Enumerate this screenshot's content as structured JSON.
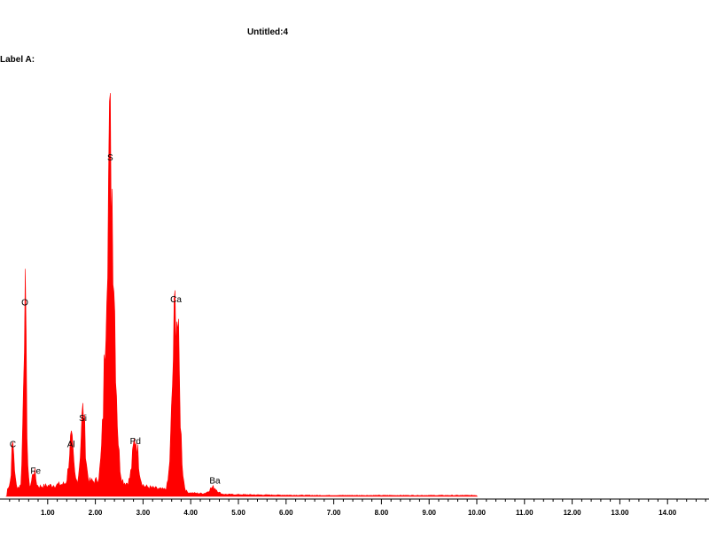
{
  "title": "Untitled:4",
  "label_a": "Label A:",
  "chart_data": {
    "type": "area",
    "title": "Untitled:4",
    "xlabel": "",
    "ylabel": "",
    "xlim": [
      0,
      15
    ],
    "ylim": [
      0,
      100
    ],
    "grid": false,
    "series_color": "#ff0000",
    "tick_labels": [
      "1.00",
      "2.00",
      "3.00",
      "4.00",
      "5.00",
      "6.00",
      "7.00",
      "8.00",
      "9.00",
      "10.00",
      "11.00",
      "12.00",
      "13.00",
      "14.00"
    ],
    "x_ticks": [
      1,
      2,
      3,
      4,
      5,
      6,
      7,
      8,
      9,
      10,
      11,
      12,
      13,
      14
    ],
    "peaks": [
      {
        "label": "C",
        "energy": 0.27,
        "counts": 13
      },
      {
        "label": "O",
        "energy": 0.52,
        "counts": 56
      },
      {
        "label": "Fe",
        "energy": 0.71,
        "counts": 5
      },
      {
        "label": "Al",
        "energy": 1.49,
        "counts": 13
      },
      {
        "label": "Si",
        "energy": 1.74,
        "counts": 21
      },
      {
        "label": "S",
        "energy": 2.31,
        "counts": 100
      },
      {
        "label": "Pd",
        "energy": 2.84,
        "counts": 14
      },
      {
        "label": "Ca",
        "energy": 3.69,
        "counts": 57
      },
      {
        "label": "Ba",
        "energy": 4.47,
        "counts": 2
      }
    ],
    "spectrum_end": 10.0
  }
}
